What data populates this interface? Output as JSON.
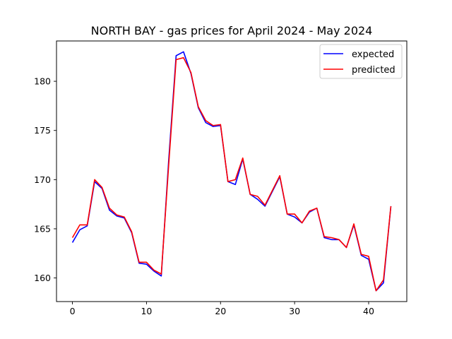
{
  "chart_data": {
    "type": "line",
    "title": "NORTH BAY - gas prices for April 2024 - May 2024",
    "xlabel": "",
    "ylabel": "",
    "xlim": [
      -2.15,
      45.15
    ],
    "ylim": [
      157.6,
      184.1
    ],
    "xticks": [
      0,
      10,
      20,
      30,
      40
    ],
    "yticks": [
      160,
      165,
      170,
      175,
      180
    ],
    "grid": false,
    "legend_position": "top-right",
    "series": [
      {
        "name": "expected",
        "color": "#0000ff",
        "x": [
          0,
          1,
          2,
          3,
          4,
          5,
          6,
          7,
          8,
          9,
          10,
          11,
          12,
          13,
          14,
          15,
          16,
          17,
          18,
          19,
          20,
          21,
          22,
          23,
          24,
          25,
          26,
          27,
          28,
          29,
          30,
          31,
          32,
          33,
          34,
          35,
          36,
          37,
          38,
          39,
          40,
          41,
          42,
          43
        ],
        "values": [
          163.6,
          164.9,
          165.3,
          169.8,
          169.1,
          166.9,
          166.3,
          166.1,
          164.6,
          161.5,
          161.4,
          160.7,
          160.2,
          172.0,
          182.6,
          183.0,
          180.8,
          177.3,
          175.8,
          175.4,
          175.5,
          169.8,
          169.5,
          172.1,
          168.5,
          168.0,
          167.3,
          168.8,
          170.3,
          166.5,
          166.2,
          165.6,
          166.7,
          167.1,
          164.1,
          163.9,
          163.9,
          163.1,
          165.4,
          162.3,
          161.9,
          158.7,
          159.5,
          167.3
        ]
      },
      {
        "name": "predicted",
        "color": "#ff0000",
        "x": [
          0,
          1,
          2,
          3,
          4,
          5,
          6,
          7,
          8,
          9,
          10,
          11,
          12,
          13,
          14,
          15,
          16,
          17,
          18,
          19,
          20,
          21,
          22,
          23,
          24,
          25,
          26,
          27,
          28,
          29,
          30,
          31,
          32,
          33,
          34,
          35,
          36,
          37,
          38,
          39,
          40,
          41,
          42,
          43
        ],
        "values": [
          164.1,
          165.4,
          165.4,
          170.0,
          169.2,
          167.1,
          166.4,
          166.2,
          164.7,
          161.6,
          161.6,
          160.8,
          160.4,
          171.5,
          182.2,
          182.4,
          180.9,
          177.4,
          176.0,
          175.5,
          175.6,
          169.8,
          170.0,
          172.2,
          168.5,
          168.3,
          167.4,
          168.9,
          170.4,
          166.5,
          166.5,
          165.6,
          166.8,
          167.1,
          164.2,
          164.1,
          163.9,
          163.1,
          165.5,
          162.4,
          162.2,
          158.7,
          159.8,
          167.3
        ]
      }
    ]
  }
}
